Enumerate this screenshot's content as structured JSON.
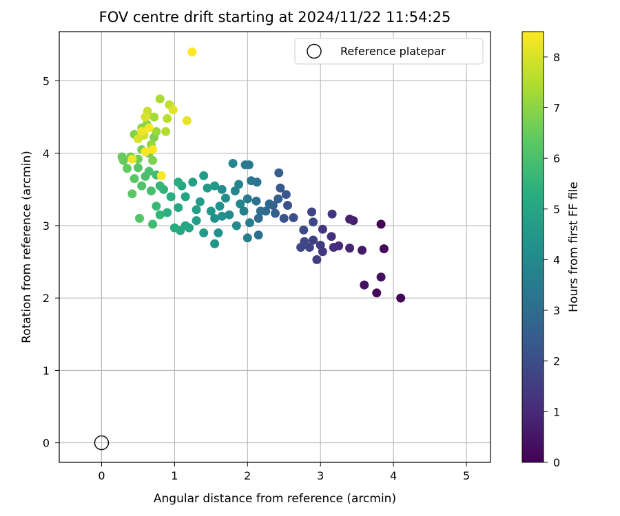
{
  "chart_data": {
    "type": "scatter",
    "title": "FOV centre drift starting at 2024/11/22 11:54:25",
    "xlabel": "Angular distance from reference (arcmin)",
    "ylabel": "Rotation from reference (arcmin)",
    "xlim": [
      -0.58,
      5.33
    ],
    "ylim": [
      -0.27,
      5.68
    ],
    "xticks": [
      0,
      1,
      2,
      3,
      4,
      5
    ],
    "yticks": [
      0,
      1,
      2,
      3,
      4,
      5
    ],
    "grid": true,
    "legend": {
      "placement": "top-right",
      "entries": [
        "Reference platepar"
      ]
    },
    "reference_point": {
      "x": 0,
      "y": 0,
      "name": "Reference platepar"
    },
    "colorbar": {
      "label": "Hours from first FF file",
      "range": [
        0,
        8.5
      ],
      "ticks": [
        0,
        1,
        2,
        3,
        4,
        5,
        6,
        7,
        8
      ],
      "colormap": "viridis"
    },
    "points": [
      [
        3.83,
        3.02,
        0.05
      ],
      [
        4.1,
        2.0,
        0.1
      ],
      [
        3.87,
        2.68,
        0.15
      ],
      [
        3.77,
        2.07,
        0.2
      ],
      [
        3.83,
        2.29,
        0.3
      ],
      [
        3.6,
        2.18,
        0.4
      ],
      [
        3.57,
        2.66,
        0.6
      ],
      [
        3.45,
        3.07,
        0.7
      ],
      [
        3.4,
        3.09,
        0.8
      ],
      [
        3.4,
        2.69,
        0.9
      ],
      [
        3.25,
        2.72,
        1.0
      ],
      [
        3.18,
        2.7,
        1.1
      ],
      [
        3.15,
        2.85,
        1.2
      ],
      [
        3.16,
        3.16,
        1.3
      ],
      [
        3.03,
        2.64,
        1.3
      ],
      [
        3.03,
        2.95,
        1.4
      ],
      [
        3.0,
        2.73,
        1.5
      ],
      [
        2.95,
        2.53,
        1.5
      ],
      [
        2.9,
        2.8,
        1.6
      ],
      [
        2.85,
        2.7,
        1.7
      ],
      [
        2.88,
        3.19,
        1.7
      ],
      [
        2.9,
        3.05,
        1.8
      ],
      [
        2.78,
        2.78,
        1.8
      ],
      [
        2.73,
        2.7,
        1.9
      ],
      [
        2.77,
        2.94,
        1.9
      ],
      [
        2.63,
        3.11,
        2.0
      ],
      [
        2.55,
        3.28,
        2.1
      ],
      [
        2.5,
        3.1,
        2.2
      ],
      [
        2.53,
        3.43,
        2.3
      ],
      [
        2.45,
        3.52,
        2.4
      ],
      [
        2.43,
        3.73,
        2.5
      ],
      [
        2.42,
        3.37,
        2.6
      ],
      [
        2.38,
        3.17,
        2.6
      ],
      [
        2.35,
        3.28,
        2.7
      ],
      [
        2.3,
        3.3,
        2.8
      ],
      [
        2.25,
        3.2,
        2.9
      ],
      [
        2.18,
        3.2,
        3.0
      ],
      [
        2.15,
        3.1,
        3.0
      ],
      [
        2.15,
        2.87,
        3.1
      ],
      [
        2.12,
        3.34,
        3.2
      ],
      [
        2.13,
        3.6,
        3.3
      ],
      [
        2.05,
        3.62,
        3.4
      ],
      [
        2.02,
        3.84,
        3.4
      ],
      [
        1.97,
        3.84,
        3.5
      ],
      [
        2.0,
        3.37,
        3.5
      ],
      [
        2.03,
        3.04,
        3.6
      ],
      [
        2.0,
        2.83,
        3.6
      ],
      [
        1.95,
        3.2,
        3.7
      ],
      [
        1.9,
        3.3,
        3.8
      ],
      [
        1.88,
        3.57,
        3.8
      ],
      [
        1.83,
        3.48,
        3.9
      ],
      [
        1.8,
        3.86,
        3.9
      ],
      [
        1.85,
        3.0,
        4.0
      ],
      [
        1.75,
        3.15,
        4.0
      ],
      [
        1.7,
        3.38,
        4.1
      ],
      [
        1.65,
        3.5,
        4.1
      ],
      [
        1.62,
        3.27,
        4.2
      ],
      [
        1.65,
        3.13,
        4.2
      ],
      [
        1.6,
        2.9,
        4.3
      ],
      [
        1.55,
        3.1,
        4.3
      ],
      [
        1.55,
        2.75,
        4.4
      ],
      [
        1.5,
        3.2,
        4.4
      ],
      [
        1.55,
        3.55,
        4.5
      ],
      [
        1.45,
        3.52,
        4.5
      ],
      [
        1.4,
        3.69,
        4.6
      ],
      [
        1.4,
        2.9,
        4.6
      ],
      [
        1.35,
        3.33,
        4.7
      ],
      [
        1.3,
        3.07,
        4.7
      ],
      [
        1.3,
        3.22,
        4.8
      ],
      [
        1.25,
        3.6,
        4.8
      ],
      [
        1.2,
        2.97,
        4.9
      ],
      [
        1.15,
        3.4,
        4.9
      ],
      [
        1.15,
        3.0,
        5.0
      ],
      [
        1.1,
        3.55,
        5.0
      ],
      [
        1.08,
        2.93,
        5.1
      ],
      [
        1.05,
        3.25,
        5.1
      ],
      [
        1.05,
        3.6,
        5.2
      ],
      [
        1.0,
        2.97,
        5.2
      ],
      [
        0.95,
        3.4,
        5.3
      ],
      [
        0.9,
        3.18,
        5.4
      ],
      [
        0.85,
        3.5,
        5.5
      ],
      [
        0.8,
        3.15,
        5.6
      ],
      [
        0.8,
        3.55,
        5.6
      ],
      [
        0.75,
        3.27,
        5.7
      ],
      [
        0.7,
        3.02,
        5.8
      ],
      [
        0.75,
        3.7,
        5.8
      ],
      [
        0.68,
        3.48,
        5.9
      ],
      [
        0.65,
        3.75,
        6.0
      ],
      [
        0.6,
        3.68,
        6.0
      ],
      [
        0.55,
        3.55,
        6.1
      ],
      [
        0.52,
        3.1,
        6.2
      ],
      [
        0.5,
        3.8,
        6.2
      ],
      [
        0.45,
        3.65,
        6.3
      ],
      [
        0.42,
        3.44,
        6.3
      ],
      [
        0.35,
        3.79,
        6.4
      ],
      [
        0.28,
        3.95,
        6.5
      ],
      [
        0.3,
        3.9,
        6.5
      ],
      [
        0.4,
        3.95,
        6.6
      ],
      [
        0.5,
        3.92,
        6.6
      ],
      [
        0.55,
        4.05,
        6.7
      ],
      [
        0.65,
        4.0,
        6.7
      ],
      [
        0.7,
        3.9,
        6.8
      ],
      [
        0.72,
        4.22,
        6.8
      ],
      [
        0.45,
        4.26,
        6.9
      ],
      [
        0.55,
        4.35,
        7.0
      ],
      [
        0.62,
        4.4,
        7.0
      ],
      [
        0.68,
        4.12,
        7.1
      ],
      [
        0.75,
        4.3,
        7.2
      ],
      [
        0.72,
        4.5,
        7.3
      ],
      [
        0.8,
        4.75,
        7.4
      ],
      [
        0.88,
        4.3,
        7.5
      ],
      [
        0.9,
        4.48,
        7.6
      ],
      [
        0.93,
        4.67,
        7.7
      ],
      [
        0.63,
        4.58,
        7.8
      ],
      [
        0.58,
        4.25,
        7.9
      ],
      [
        0.5,
        4.2,
        8.0
      ],
      [
        0.6,
        4.5,
        8.0
      ],
      [
        0.98,
        4.6,
        8.1
      ],
      [
        1.17,
        4.45,
        8.2
      ],
      [
        0.42,
        3.92,
        8.3
      ],
      [
        0.55,
        4.3,
        8.3
      ],
      [
        0.65,
        4.35,
        8.4
      ],
      [
        0.7,
        4.05,
        8.4
      ],
      [
        0.6,
        4.02,
        8.45
      ],
      [
        0.82,
        3.69,
        8.45
      ],
      [
        1.24,
        5.4,
        8.5
      ]
    ]
  }
}
